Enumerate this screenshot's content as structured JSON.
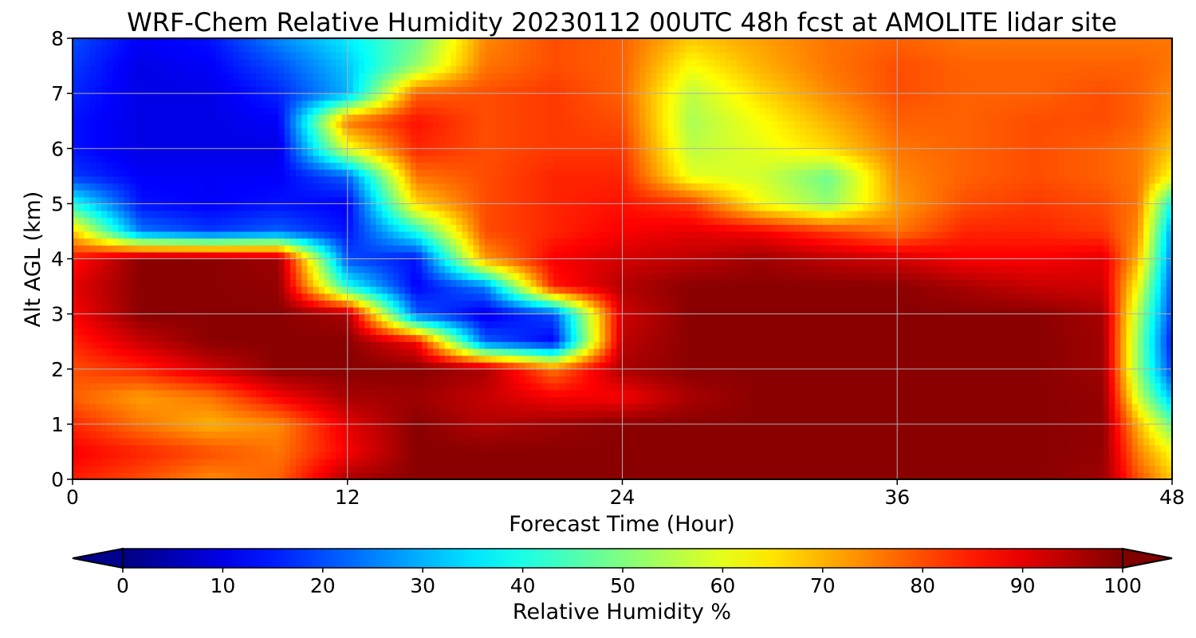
{
  "chart_data": {
    "type": "heatmap",
    "title": "WRF-Chem Relative Humidity 20230112 00UTC 48h fcst at AMOLITE lidar site",
    "xlabel": "Forecast Time (Hour)",
    "ylabel": "Alt AGL (km)",
    "xlim": [
      0,
      48
    ],
    "ylim": [
      0,
      8
    ],
    "x_ticks": [
      "0",
      "12",
      "24",
      "36",
      "48"
    ],
    "x_tick_values": [
      0,
      12,
      24,
      36,
      48
    ],
    "y_ticks": [
      "0",
      "1",
      "2",
      "3",
      "4",
      "5",
      "6",
      "7",
      "8"
    ],
    "y_tick_values": [
      0,
      1,
      2,
      3,
      4,
      5,
      6,
      7,
      8
    ],
    "grid": true,
    "colorbar": {
      "label": "Relative Humidity %",
      "range": [
        0,
        100
      ],
      "ticks": [
        "0",
        "10",
        "20",
        "30",
        "40",
        "50",
        "60",
        "70",
        "80",
        "90",
        "100"
      ],
      "tick_values": [
        0,
        10,
        20,
        30,
        40,
        50,
        60,
        70,
        80,
        90,
        100
      ],
      "colormap": "jet",
      "extend": "both"
    },
    "field": {
      "x": [
        0,
        3,
        6,
        9,
        12,
        15,
        18,
        21,
        24,
        27,
        30,
        33,
        36,
        39,
        42,
        45,
        46.5,
        48
      ],
      "y": [
        0,
        0.5,
        1,
        1.5,
        2,
        2.5,
        3,
        3.5,
        4,
        4.5,
        5,
        5.5,
        6,
        6.5,
        7,
        7.5,
        8
      ],
      "values": [
        [
          85,
          80,
          74,
          78,
          96,
          99,
          99,
          99,
          99,
          99,
          99,
          99,
          99,
          99,
          99,
          97,
          80,
          68
        ],
        [
          88,
          84,
          80,
          76,
          88,
          99,
          99,
          99,
          99,
          99,
          99,
          99,
          99,
          99,
          99,
          98,
          75,
          62
        ],
        [
          84,
          76,
          70,
          74,
          90,
          99,
          95,
          97,
          99,
          99,
          99,
          99,
          99,
          99,
          99,
          98,
          70,
          48
        ],
        [
          78,
          72,
          76,
          88,
          96,
          97,
          93,
          88,
          88,
          96,
          99,
          99,
          99,
          99,
          99,
          98,
          58,
          30
        ],
        [
          80,
          84,
          92,
          99,
          99,
          99,
          96,
          76,
          96,
          99,
          99,
          99,
          99,
          99,
          99,
          97,
          52,
          18
        ],
        [
          84,
          93,
          99,
          99,
          99,
          88,
          22,
          12,
          94,
          99,
          99,
          99,
          99,
          99,
          99,
          97,
          52,
          14
        ],
        [
          88,
          99,
          99,
          99,
          96,
          22,
          10,
          20,
          92,
          99,
          99,
          99,
          99,
          99,
          99,
          96,
          55,
          18
        ],
        [
          90,
          99,
          99,
          98,
          40,
          12,
          25,
          85,
          95,
          99,
          99,
          99,
          99,
          96,
          93,
          92,
          62,
          20
        ],
        [
          86,
          99,
          99,
          97,
          20,
          14,
          72,
          88,
          92,
          94,
          97,
          94,
          92,
          88,
          88,
          90,
          70,
          24
        ],
        [
          68,
          24,
          18,
          22,
          14,
          40,
          80,
          84,
          88,
          90,
          88,
          82,
          76,
          84,
          84,
          82,
          74,
          28
        ],
        [
          40,
          14,
          12,
          14,
          12,
          66,
          80,
          84,
          86,
          82,
          62,
          52,
          72,
          80,
          82,
          80,
          76,
          38
        ],
        [
          18,
          12,
          12,
          12,
          22,
          76,
          80,
          84,
          84,
          60,
          58,
          48,
          74,
          78,
          80,
          78,
          76,
          62
        ],
        [
          14,
          10,
          10,
          10,
          60,
          84,
          80,
          82,
          82,
          56,
          60,
          66,
          76,
          78,
          80,
          78,
          76,
          68
        ],
        [
          14,
          10,
          10,
          12,
          76,
          86,
          80,
          82,
          80,
          54,
          62,
          70,
          78,
          78,
          80,
          80,
          78,
          72
        ],
        [
          16,
          10,
          10,
          16,
          30,
          78,
          80,
          82,
          78,
          56,
          66,
          74,
          80,
          78,
          78,
          80,
          78,
          74
        ],
        [
          18,
          10,
          12,
          20,
          32,
          52,
          76,
          80,
          78,
          62,
          70,
          76,
          80,
          78,
          78,
          78,
          78,
          76
        ],
        [
          20,
          12,
          14,
          26,
          36,
          48,
          74,
          80,
          78,
          68,
          72,
          76,
          78,
          76,
          76,
          76,
          76,
          76
        ]
      ]
    }
  }
}
